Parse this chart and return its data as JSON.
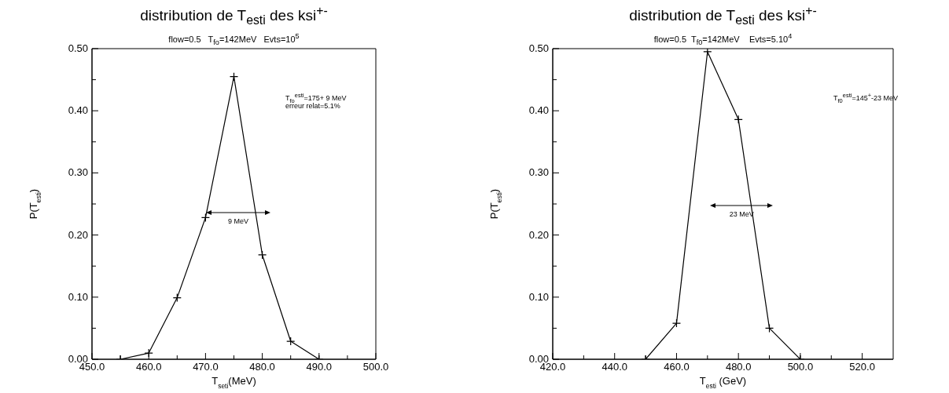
{
  "chart_data": [
    {
      "type": "line",
      "title": "distribution de T$_{esti}$ des ksi$^{+-}$",
      "subtitle": "flow=0.5   T$_{fo}$=142MeV   Evts=10$^{5}$",
      "xlabel": "T$_{seti}$(MeV)",
      "ylabel": "P(T$_{esti}$)",
      "annotations": [
        "T$_{fo}$$^{esti}$=175+ 9 MeV",
        "erreur relat=5.1%",
        "9 MeV"
      ],
      "x": [
        455,
        460,
        465,
        470,
        475,
        480,
        485,
        490
      ],
      "series": [
        {
          "color": "#000000",
          "values": [
            0,
            0.01,
            0.099,
            0.228,
            0.455,
            0.168,
            0.029,
            0
          ]
        }
      ],
      "marker": "cross",
      "line_style": "solid",
      "xlim": [
        450,
        500
      ],
      "xticks": [
        {
          "value": 450,
          "label": "450.0"
        },
        {
          "value": 455,
          "label": null
        },
        {
          "value": 460,
          "label": "460.0"
        },
        {
          "value": 465,
          "label": null
        },
        {
          "value": 470,
          "label": "470.0"
        },
        {
          "value": 475,
          "label": null
        },
        {
          "value": 480,
          "label": "480.0"
        },
        {
          "value": 485,
          "label": null
        },
        {
          "value": 490,
          "label": "490.0"
        },
        {
          "value": 495,
          "label": null
        },
        {
          "value": 500,
          "label": "500.0"
        }
      ],
      "ylim": [
        0,
        0.5
      ],
      "yticks": [
        {
          "value": 0,
          "label": "0.00"
        },
        {
          "value": 0.05,
          "label": null
        },
        {
          "value": 0.1,
          "label": "0.10"
        },
        {
          "value": 0.15,
          "label": null
        },
        {
          "value": 0.2,
          "label": "0.20"
        },
        {
          "value": 0.25,
          "label": null
        },
        {
          "value": 0.3,
          "label": "0.30"
        },
        {
          "value": 0.35,
          "label": null
        },
        {
          "value": 0.4,
          "label": "0.40"
        },
        {
          "value": 0.45,
          "label": null
        },
        {
          "value": 0.5,
          "label": "0.50"
        }
      ]
    },
    {
      "type": "line",
      "title": "distribution de T$_{esti}$ des ksi$^{+-}$",
      "subtitle": "flow=0.5  T$_{f0}$=142MeV    Evts=5.10$^{4}$",
      "xlabel": "T$_{esti}$  (GeV)",
      "ylabel": "P(T$_{esti}$)",
      "annotations": [
        "T$_{f0}$$^{esti}$=145$^{+}$-23 MeV",
        "23 MeV"
      ],
      "x": [
        450,
        460,
        470,
        480,
        490,
        500
      ],
      "series": [
        {
          "color": "#000000",
          "values": [
            0,
            0.058,
            0.495,
            0.386,
            0.05,
            0
          ]
        }
      ],
      "marker": "cross",
      "line_style": "solid",
      "xlim": [
        420,
        530
      ],
      "xticks": [
        {
          "value": 420,
          "label": "420.0"
        },
        {
          "value": 430,
          "label": null
        },
        {
          "value": 440,
          "label": "440.0"
        },
        {
          "value": 450,
          "label": null
        },
        {
          "value": 460,
          "label": "460.0"
        },
        {
          "value": 470,
          "label": null
        },
        {
          "value": 480,
          "label": "480.0"
        },
        {
          "value": 490,
          "label": null
        },
        {
          "value": 500,
          "label": "500.0"
        },
        {
          "value": 510,
          "label": null
        },
        {
          "value": 520,
          "label": "520.0"
        }
      ],
      "ylim": [
        0,
        0.5
      ],
      "yticks": [
        {
          "value": 0,
          "label": "0.00"
        },
        {
          "value": 0.05,
          "label": null
        },
        {
          "value": 0.1,
          "label": "0.10"
        },
        {
          "value": 0.15,
          "label": null
        },
        {
          "value": 0.2,
          "label": "0.20"
        },
        {
          "value": 0.25,
          "label": null
        },
        {
          "value": 0.3,
          "label": "0.30"
        },
        {
          "value": 0.35,
          "label": null
        },
        {
          "value": 0.4,
          "label": "0.40"
        },
        {
          "value": 0.45,
          "label": null
        },
        {
          "value": 0.5,
          "label": "0.50"
        }
      ]
    }
  ]
}
